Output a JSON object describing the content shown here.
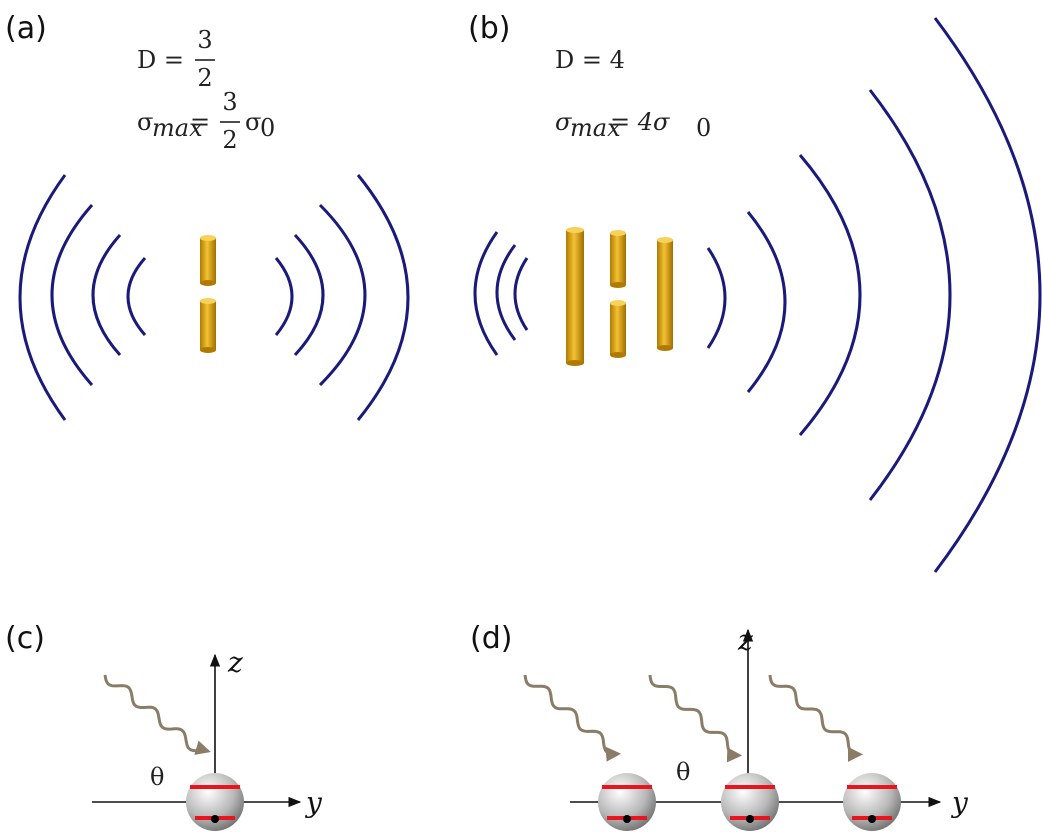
{
  "panel_a": {
    "label": "(a)",
    "D": {
      "lhs": "D =",
      "num": "3",
      "den": "2"
    },
    "sigma": {
      "lhs": "σ",
      "sub": "max",
      "eq": "=",
      "num": "3",
      "den": "2",
      "rhs": "σ",
      "rhs_sub": "0"
    }
  },
  "panel_b": {
    "label": "(b)",
    "D": "D = 4",
    "sigma": {
      "lhs": "σ",
      "sub": "max",
      "rhs": "= 4σ",
      "rhs_sub": "0"
    }
  },
  "panel_c": {
    "label": "(c)",
    "z": "z",
    "y": "y",
    "angle": "θ"
  },
  "panel_d": {
    "label": "(d)",
    "z": "z",
    "y": "y",
    "angle": "θ"
  }
}
